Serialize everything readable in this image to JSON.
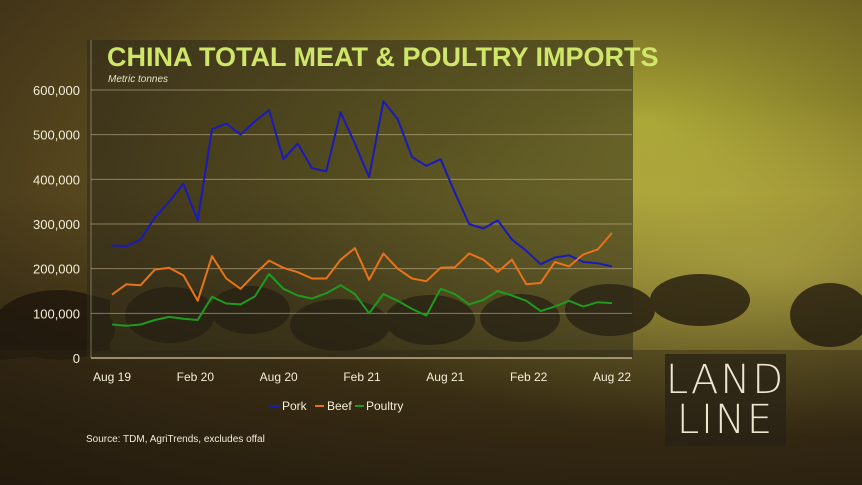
{
  "chart_data": {
    "type": "line",
    "title": "CHINA TOTAL MEAT & POULTRY IMPORTS",
    "subtitle": "Metric tonnes",
    "source": "Source: TDM, AgriTrends, excludes offal",
    "xlabel": "",
    "ylabel": "",
    "x_tick_labels": [
      "Aug 19",
      "Feb 20",
      "Aug 20",
      "Feb 21",
      "Aug 21",
      "Feb 22",
      "Aug 22"
    ],
    "y_tick_labels": [
      "0",
      "100,000",
      "200,000",
      "300,000",
      "400,000",
      "500,000",
      "600,000"
    ],
    "ylim": [
      0,
      600000
    ],
    "grid": true,
    "legend_position": "bottom-center",
    "series": [
      {
        "name": "Pork",
        "color": "#1a1ab8",
        "values": [
          252000,
          250000,
          265000,
          315000,
          350000,
          390000,
          308000,
          512000,
          525000,
          500000,
          530000,
          555000,
          445000,
          480000,
          425000,
          418000,
          550000,
          480000,
          405000,
          575000,
          535000,
          450000,
          430000,
          445000,
          370000,
          300000,
          290000,
          308000,
          265000,
          240000,
          210000,
          225000,
          230000,
          215000,
          212000,
          205000
        ]
      },
      {
        "name": "Beef",
        "color": "#e8731a",
        "values": [
          142000,
          165000,
          163000,
          198000,
          202000,
          185000,
          128000,
          228000,
          178000,
          155000,
          188000,
          218000,
          202000,
          192000,
          178000,
          178000,
          220000,
          246000,
          175000,
          234000,
          200000,
          178000,
          172000,
          202000,
          203000,
          234000,
          220000,
          193000,
          220000,
          165000,
          168000,
          215000,
          205000,
          232000,
          243000,
          280000
        ]
      },
      {
        "name": "Poultry",
        "color": "#1f9a1f",
        "values": [
          75000,
          72000,
          75000,
          85000,
          92000,
          88000,
          85000,
          137000,
          122000,
          120000,
          138000,
          188000,
          155000,
          140000,
          133000,
          145000,
          163000,
          143000,
          100000,
          143000,
          128000,
          110000,
          95000,
          155000,
          143000,
          120000,
          130000,
          150000,
          140000,
          128000,
          105000,
          115000,
          128000,
          115000,
          125000,
          123000
        ]
      }
    ]
  },
  "branding": {
    "logo_line1": "LAND",
    "logo_line2": "LINE"
  },
  "colors": {
    "title": "#cfe66a",
    "gridline": "#cdbd96"
  }
}
